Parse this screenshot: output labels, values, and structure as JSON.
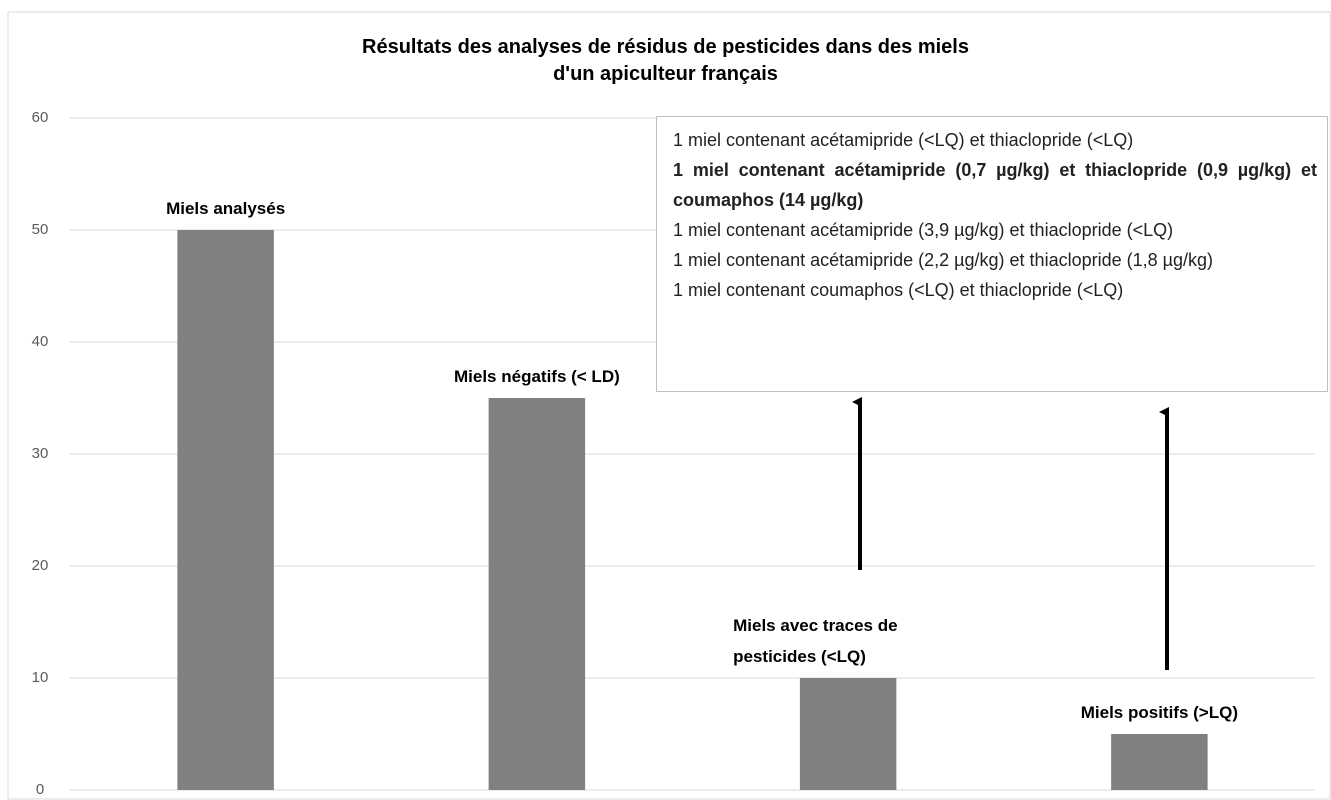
{
  "chart_data": {
    "type": "bar",
    "title": [
      "Résultats des analyses de résidus de pesticides dans des miels",
      "d'un apiculteur français"
    ],
    "categories": [
      "Miels analysés",
      "Miels négatifs (< LD)",
      "Miels avec traces de pesticides (<LQ)",
      "Miels positifs (>LQ)"
    ],
    "values": [
      50,
      35,
      10,
      5
    ],
    "color": "#808080",
    "ylim": [
      0,
      60
    ],
    "yticks": [
      0,
      10,
      20,
      30,
      40,
      50,
      60
    ],
    "grid": true,
    "annotation": [
      "1 miel contenant acétamipride (<LQ) et thiaclopride (<LQ)",
      "1 miel contenant acétamipride (0,7 µg/kg) et thiaclopride (0,9 µg/kg) et coumaphos (14 µg/kg)",
      "1 miel contenant acétamipride (3,9 µg/kg) et thiaclopride (<LQ)",
      "1 miel contenant acétamipride (2,2 µg/kg) et thiaclopride (1,8 µg/kg)",
      "1 miel contenant coumaphos (<LQ) et thiaclopride (<LQ)"
    ]
  }
}
